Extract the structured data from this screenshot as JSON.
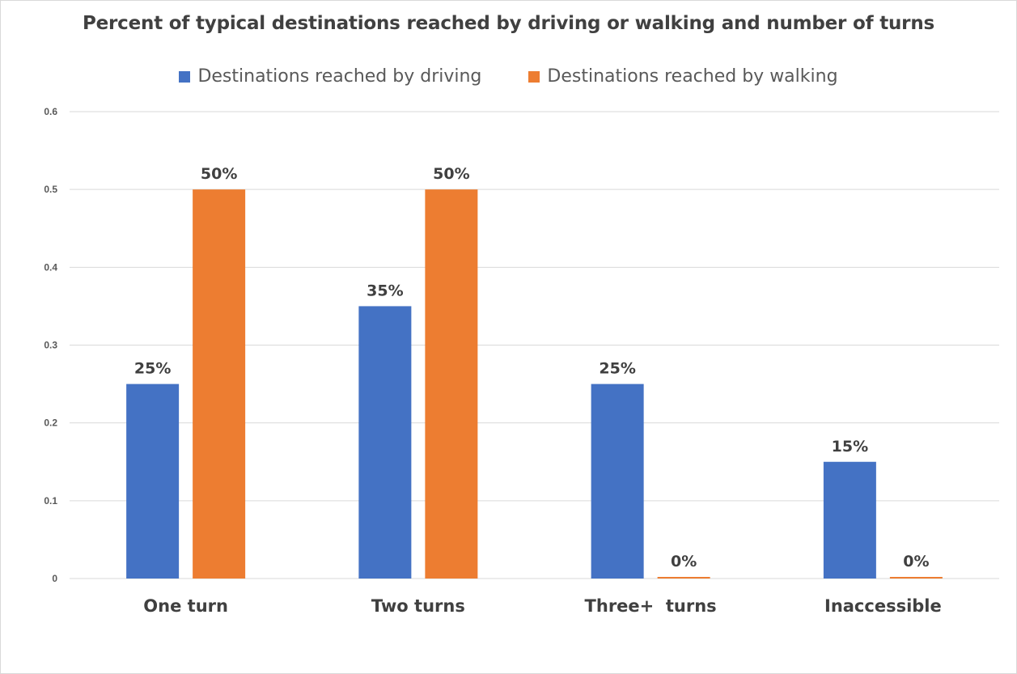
{
  "chart_data": {
    "type": "bar",
    "title": "Percent of typical destinations reached by driving or walking and number of turns",
    "categories": [
      "One turn",
      "Two turns",
      "Three+  turns",
      "Inaccessible"
    ],
    "series": [
      {
        "name": "Destinations reached by driving",
        "color": "#4472c4",
        "values": [
          0.25,
          0.35,
          0.25,
          0.15
        ],
        "labels": [
          "25%",
          "35%",
          "25%",
          "15%"
        ]
      },
      {
        "name": "Destinations reached by walking",
        "color": "#ed7d31",
        "values": [
          0.5,
          0.5,
          0,
          0
        ],
        "labels": [
          "50%",
          "50%",
          "0%",
          "0%"
        ]
      }
    ],
    "yticks": [
      "0",
      "0.1",
      "0.2",
      "0.3",
      "0.4",
      "0.5",
      "0.6"
    ],
    "ylim": [
      0,
      0.6
    ],
    "grid": true,
    "legend": "top"
  }
}
